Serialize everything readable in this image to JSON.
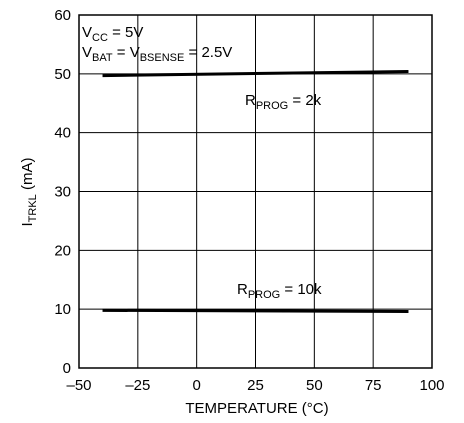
{
  "chart_data": {
    "type": "line",
    "xlabel": "TEMPERATURE (°C)",
    "ylabel": {
      "main": "I",
      "sub": "TRKL",
      "unit": " (mA)"
    },
    "xlim": [
      -50,
      100
    ],
    "ylim": [
      0,
      60
    ],
    "x_ticks": [
      "–50",
      "–25",
      "0",
      "25",
      "50",
      "75",
      "100"
    ],
    "y_ticks": [
      "0",
      "10",
      "20",
      "30",
      "40",
      "50",
      "60"
    ],
    "grid": true,
    "series": [
      {
        "name": {
          "main": "R",
          "sub": "PROG",
          "rest": " = 2k"
        },
        "x": [
          -40,
          90
        ],
        "y": [
          49.7,
          50.4
        ]
      },
      {
        "name": {
          "main": "R",
          "sub": "PROG",
          "rest": " = 10k"
        },
        "x": [
          -40,
          90
        ],
        "y": [
          9.8,
          9.6
        ]
      }
    ],
    "annotations": [
      {
        "main": "V",
        "sub": "CC",
        "rest": " = 5V"
      },
      {
        "main": "V",
        "sub": "BAT",
        "mid": " = V",
        "sub2": "BSENSE",
        "rest": " = 2.5V"
      }
    ]
  }
}
